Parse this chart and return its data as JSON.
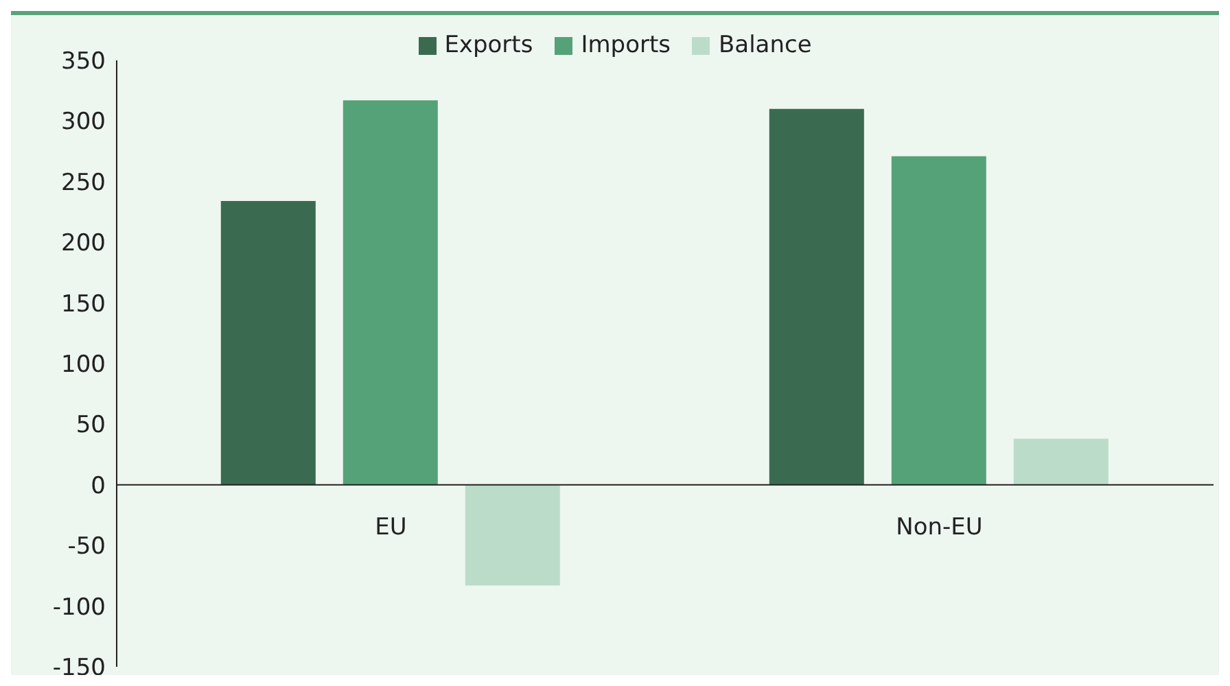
{
  "chart_data": {
    "type": "bar",
    "categories": [
      "EU",
      "Non-EU"
    ],
    "series": [
      {
        "name": "Exports",
        "color": "#3a6b50",
        "values": [
          234,
          310
        ]
      },
      {
        "name": "Imports",
        "color": "#55a278",
        "values": [
          317,
          271
        ]
      },
      {
        "name": "Balance",
        "color": "#bcdcca",
        "values": [
          -83,
          38
        ]
      }
    ],
    "ylim": [
      -150,
      350
    ],
    "yticks": [
      -150,
      -100,
      -50,
      0,
      50,
      100,
      150,
      200,
      250,
      300,
      350
    ],
    "legend": "top"
  }
}
